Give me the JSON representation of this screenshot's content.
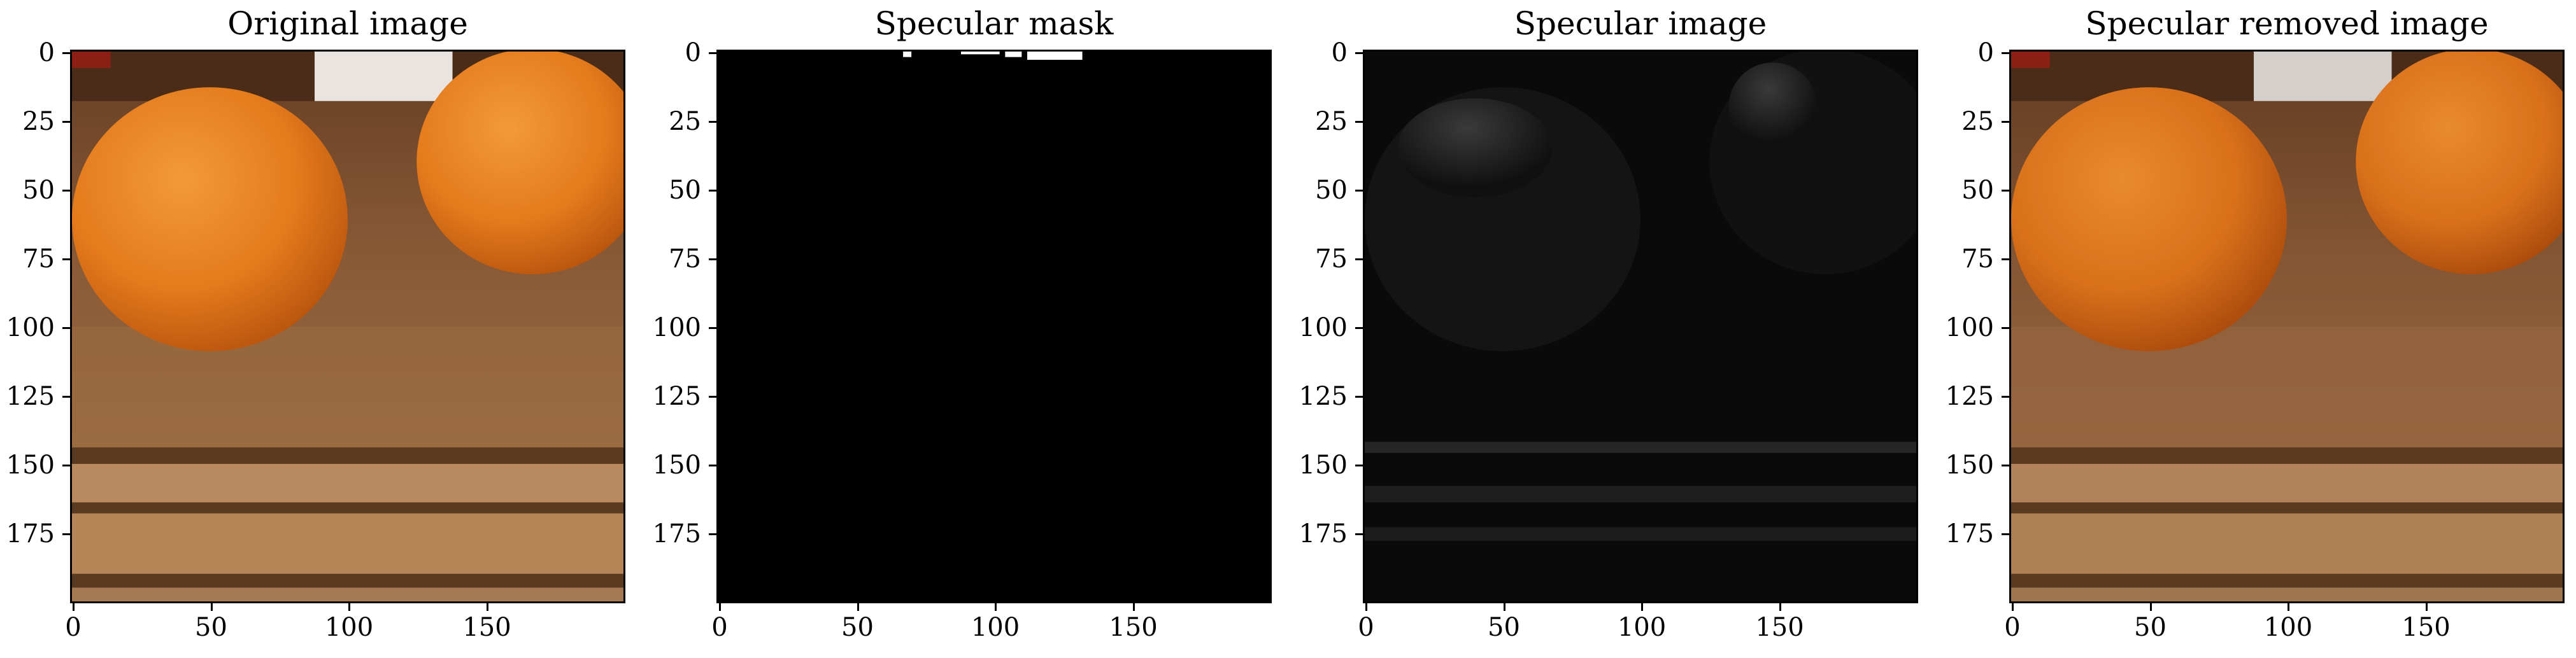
{
  "figure": {
    "panels": [
      {
        "id": "original",
        "title": "Original image"
      },
      {
        "id": "mask",
        "title": "Specular mask"
      },
      {
        "id": "specular",
        "title": "Specular image"
      },
      {
        "id": "removed",
        "title": "Specular removed image"
      }
    ],
    "y_ticks": [
      "0",
      "25",
      "50",
      "75",
      "100",
      "125",
      "150",
      "175"
    ],
    "x_ticks": [
      "0",
      "50",
      "100",
      "150"
    ]
  },
  "colors": {
    "orange": "#e47a1c",
    "orange_dark": "#b8530d",
    "wood_top": "#8a5a36",
    "wood_light": "#b9895f",
    "wood_dark": "#5b3a22",
    "mask_bg": "#000000",
    "mask_fg": "#ffffff",
    "specular_bg": "#0a0a0a"
  },
  "chart_data": [
    {
      "type": "image",
      "title": "Original image",
      "x_range": [
        0,
        199
      ],
      "y_range": [
        199,
        0
      ],
      "xticks": [
        0,
        50,
        100,
        150
      ],
      "yticks": [
        0,
        25,
        50,
        75,
        100,
        125,
        150,
        175
      ]
    },
    {
      "type": "image",
      "title": "Specular mask",
      "x_range": [
        0,
        199
      ],
      "y_range": [
        199,
        0
      ],
      "xticks": [
        0,
        50,
        100,
        150
      ],
      "yticks": [
        0,
        25,
        50,
        75,
        100,
        125,
        150,
        175
      ]
    },
    {
      "type": "image",
      "title": "Specular image",
      "x_range": [
        0,
        199
      ],
      "y_range": [
        199,
        0
      ],
      "xticks": [
        0,
        50,
        100,
        150
      ],
      "yticks": [
        0,
        25,
        50,
        75,
        100,
        125,
        150,
        175
      ]
    },
    {
      "type": "image",
      "title": "Specular removed image",
      "x_range": [
        0,
        199
      ],
      "y_range": [
        199,
        0
      ],
      "xticks": [
        0,
        50,
        100,
        150
      ],
      "yticks": [
        0,
        25,
        50,
        75,
        100,
        125,
        150,
        175
      ]
    }
  ]
}
